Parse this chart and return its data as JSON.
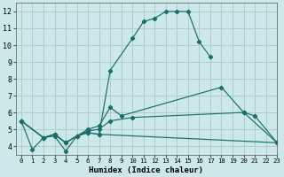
{
  "xlabel": "Humidex (Indice chaleur)",
  "bg_color": "#cce8e8",
  "grid_color": "#b0cccc",
  "line_color": "#1a6e6a",
  "xlim": [
    -0.5,
    23
  ],
  "ylim": [
    3.5,
    12.5
  ],
  "xticks": [
    0,
    1,
    2,
    3,
    4,
    5,
    6,
    7,
    8,
    9,
    10,
    11,
    12,
    13,
    14,
    15,
    16,
    17,
    18,
    19,
    20,
    21,
    22,
    23
  ],
  "yticks": [
    4,
    5,
    6,
    7,
    8,
    9,
    10,
    11,
    12
  ],
  "series": [
    {
      "x": [
        0,
        1,
        2,
        3,
        4,
        5,
        6,
        7,
        8,
        10,
        11,
        12,
        13,
        14,
        15,
        16,
        17
      ],
      "y": [
        5.5,
        3.8,
        4.5,
        4.6,
        3.7,
        4.6,
        4.8,
        4.7,
        8.5,
        10.4,
        11.4,
        11.6,
        12.0,
        12.0,
        12.0,
        10.2,
        9.3
      ]
    },
    {
      "x": [
        0,
        2,
        3,
        4,
        5,
        6,
        7,
        8,
        9,
        18,
        20,
        21,
        23
      ],
      "y": [
        5.5,
        4.5,
        4.7,
        4.2,
        4.6,
        5.0,
        5.2,
        6.3,
        5.8,
        7.5,
        6.0,
        5.8,
        4.2
      ]
    },
    {
      "x": [
        0,
        2,
        3,
        4,
        5,
        6,
        7,
        8,
        10,
        20,
        23
      ],
      "y": [
        5.5,
        4.5,
        4.7,
        4.2,
        4.6,
        4.9,
        5.0,
        5.5,
        5.7,
        6.0,
        4.2
      ]
    },
    {
      "x": [
        0,
        2,
        3,
        4,
        5,
        6,
        7,
        23
      ],
      "y": [
        5.5,
        4.5,
        4.7,
        4.2,
        4.6,
        4.8,
        4.7,
        4.2
      ]
    }
  ]
}
